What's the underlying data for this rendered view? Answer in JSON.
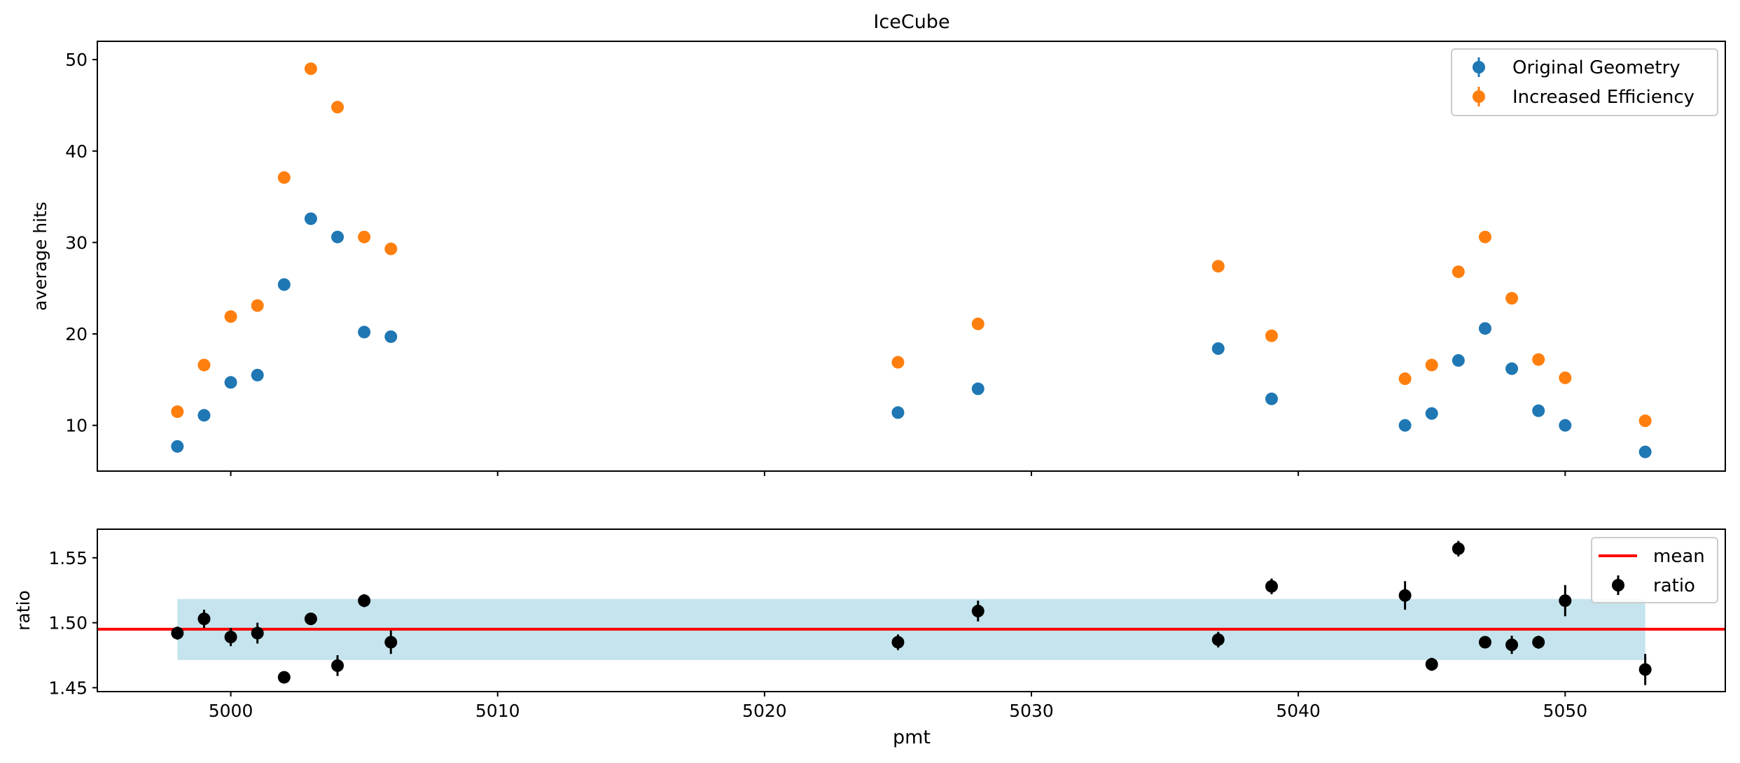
{
  "chart_data": [
    {
      "type": "scatter",
      "title": "IceCube",
      "xlabel": "",
      "ylabel": "average hits",
      "xlim": [
        4995,
        5056
      ],
      "ylim": [
        5,
        52
      ],
      "yticks": [
        10,
        20,
        30,
        40,
        50
      ],
      "grid": false,
      "legend_position": "top-right",
      "x": [
        4998,
        4999,
        5000,
        5001,
        5002,
        5003,
        5004,
        5005,
        5006,
        5025,
        5028,
        5037,
        5039,
        5044,
        5045,
        5046,
        5047,
        5048,
        5049,
        5050,
        5053
      ],
      "series": [
        {
          "name": "Original Geometry",
          "color": "#1f77b4",
          "values": [
            7.7,
            11.1,
            14.7,
            15.5,
            25.4,
            32.6,
            30.6,
            20.2,
            19.7,
            11.4,
            14.0,
            18.4,
            12.9,
            10.0,
            11.3,
            17.1,
            20.6,
            16.2,
            11.6,
            10.0,
            7.1
          ]
        },
        {
          "name": "Increased Efficiency",
          "color": "#ff7f0e",
          "values": [
            11.5,
            16.6,
            21.9,
            23.1,
            37.1,
            49.0,
            44.8,
            30.6,
            29.3,
            16.9,
            21.1,
            27.4,
            19.8,
            15.1,
            16.6,
            26.8,
            30.6,
            23.9,
            17.2,
            15.2,
            10.5
          ]
        }
      ]
    },
    {
      "type": "scatter",
      "title": "",
      "xlabel": "pmt",
      "ylabel": "ratio",
      "xlim": [
        4995,
        5056
      ],
      "ylim": [
        1.447,
        1.572
      ],
      "xticks": [
        5000,
        5010,
        5020,
        5030,
        5040,
        5050
      ],
      "yticks": [
        1.45,
        1.5,
        1.55
      ],
      "grid": false,
      "legend_position": "top-right",
      "mean": 1.495,
      "band": {
        "x_range": [
          4998,
          5053
        ],
        "y_range": [
          1.4713,
          1.5183
        ],
        "color": "#add8e6"
      },
      "x": [
        4998,
        4999,
        5000,
        5001,
        5002,
        5003,
        5004,
        5005,
        5006,
        5025,
        5028,
        5037,
        5039,
        5044,
        5045,
        5046,
        5047,
        5048,
        5049,
        5050,
        5053
      ],
      "series": [
        {
          "name": "ratio",
          "color": "#000000",
          "values": [
            1.492,
            1.503,
            1.489,
            1.492,
            1.458,
            1.503,
            1.467,
            1.517,
            1.485,
            1.485,
            1.509,
            1.487,
            1.528,
            1.521,
            1.468,
            1.557,
            1.485,
            1.483,
            1.485,
            1.517,
            1.464
          ],
          "errors": [
            0.005,
            0.007,
            0.007,
            0.008,
            0.003,
            0.004,
            0.008,
            0.005,
            0.009,
            0.006,
            0.008,
            0.006,
            0.006,
            0.011,
            0.005,
            0.006,
            0.004,
            0.007,
            0.005,
            0.012,
            0.012
          ]
        },
        {
          "name": "mean",
          "color": "#ff0000",
          "values": []
        }
      ]
    }
  ]
}
